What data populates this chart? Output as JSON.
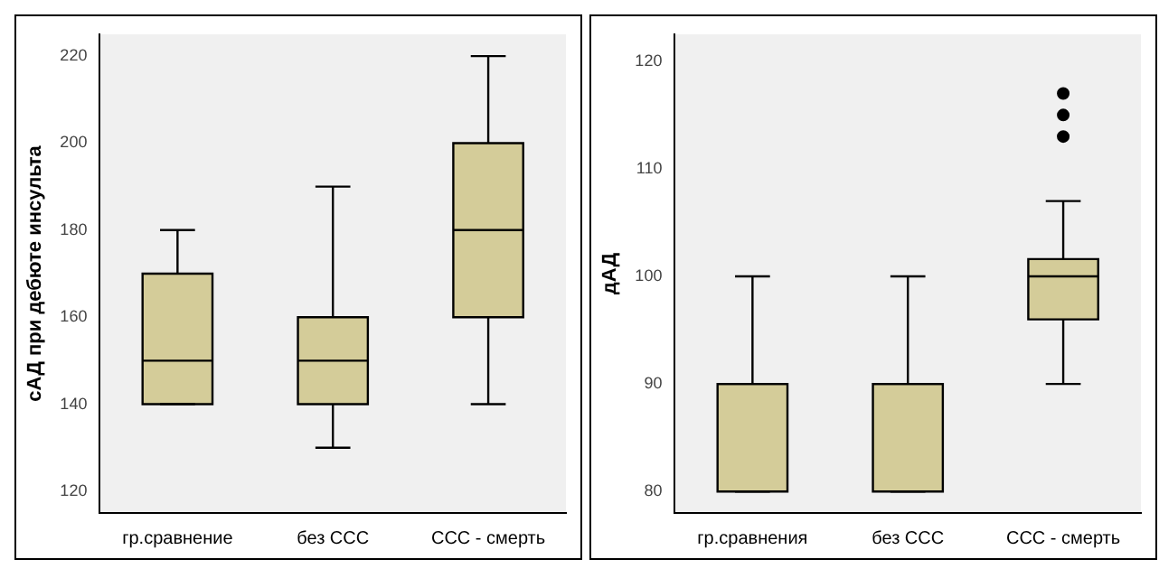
{
  "chart_data": [
    {
      "type": "box",
      "ylabel": "сАД при дебюте инсульта",
      "categories": [
        "гр.сравнение",
        "без ССС",
        "ССС - смерть"
      ],
      "color": "#d4cc99",
      "ylim": [
        115,
        225
      ],
      "yticks": [
        120,
        140,
        160,
        180,
        200,
        220
      ],
      "grid": false,
      "legend": false,
      "boxes": [
        {
          "low": 140,
          "q1": 140,
          "median": 150,
          "q3": 170,
          "high": 180
        },
        {
          "low": 130,
          "q1": 140,
          "median": 150,
          "q3": 160,
          "high": 190
        },
        {
          "low": 140,
          "q1": 160,
          "median": 180,
          "q3": 200,
          "high": 220
        }
      ]
    },
    {
      "type": "box",
      "ylabel": "дАД",
      "categories": [
        "гр.сравнения",
        "без ССС",
        "ССС - смерть"
      ],
      "color": "#d4cc99",
      "ylim": [
        78,
        122.5
      ],
      "yticks": [
        80,
        90,
        100,
        110,
        120
      ],
      "grid": false,
      "legend": false,
      "boxes": [
        {
          "low": 80,
          "q1": 80,
          "median": 90,
          "q3": 90,
          "high": 100
        },
        {
          "low": 80,
          "q1": 80,
          "median": 90,
          "q3": 90,
          "high": 100
        },
        {
          "low": 90,
          "q1": 96,
          "median": 100,
          "q3": 101.6,
          "high": 107,
          "outliers": [
            113,
            115,
            117
          ]
        }
      ]
    }
  ]
}
